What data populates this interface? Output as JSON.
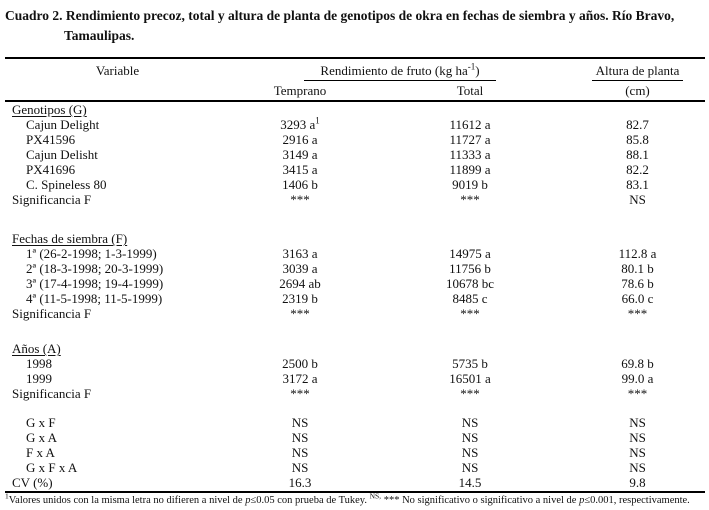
{
  "title": {
    "line1": "Cuadro 2. Rendimiento precoz, total y altura de planta de genotipos de okra en fechas de siembra y años. Río Bravo,",
    "line2": "Tamaulipas."
  },
  "header": {
    "variable": "Variable",
    "group_pre": "Rendimiento de fruto (kg ha",
    "group_sup": "-1",
    "group_post": ")",
    "temprano": "Temprano",
    "total": "Total",
    "altura_top": "Altura de planta",
    "altura_bottom": "(cm)"
  },
  "sections": [
    {
      "heading": "Genotipos (G)",
      "rows": [
        {
          "label": "Cajun Delight",
          "temprano": "3293 a",
          "temprano_sup": "1",
          "total": "11612 a",
          "altura": "82.7"
        },
        {
          "label": "PX41596",
          "temprano": "2916 a",
          "total": "11727 a",
          "altura": "85.8"
        },
        {
          "label": "Cajun Delisht",
          "temprano": "3149 a",
          "total": "11333 a",
          "altura": "88.1"
        },
        {
          "label": "PX41696",
          "temprano": "3415 a",
          "total": "11899 a",
          "altura": "82.2"
        },
        {
          "label": "C. Spineless 80",
          "temprano": "1406 b",
          "total": "9019 b",
          "altura": "83.1"
        },
        {
          "label": "Significancia F",
          "temprano": "***",
          "total": "***",
          "altura": "NS"
        }
      ]
    },
    {
      "heading": "Fechas de siembra (F)",
      "rows": [
        {
          "label": "1ª (26-2-1998; 1-3-1999)",
          "temprano": "3163 a",
          "total": "14975 a",
          "altura": "112.8 a"
        },
        {
          "label": "2ª (18-3-1998; 20-3-1999)",
          "temprano": "3039 a",
          "total": "11756 b",
          "altura": "80.1 b"
        },
        {
          "label": "3ª (17-4-1998; 19-4-1999)",
          "temprano": "2694 ab",
          "total": "10678 bc",
          "altura": "78.6 b"
        },
        {
          "label": "4ª (11-5-1998; 11-5-1999)",
          "temprano": "2319 b",
          "total": "8485 c",
          "altura": "66.0 c"
        },
        {
          "label": "Significancia F",
          "temprano": "***",
          "total": "***",
          "altura": "***"
        }
      ]
    },
    {
      "heading": "Años (A)",
      "rows": [
        {
          "label": "1998",
          "temprano": "2500 b",
          "total": "5735 b",
          "altura": "69.8 b"
        },
        {
          "label": "1999",
          "temprano": "3172 a",
          "total": "16501 a",
          "altura": "99.0 a"
        },
        {
          "label": "Significancia F",
          "temprano": "***",
          "total": "***",
          "altura": "***"
        }
      ]
    },
    {
      "heading": "",
      "rows": [
        {
          "label": "G x F",
          "temprano": "NS",
          "total": "NS",
          "altura": "NS"
        },
        {
          "label": "G x A",
          "temprano": "NS",
          "total": "NS",
          "altura": "NS"
        },
        {
          "label": "F x A",
          "temprano": "NS",
          "total": "NS",
          "altura": "NS"
        },
        {
          "label": "G x F x A",
          "temprano": "NS",
          "total": "NS",
          "altura": "NS"
        },
        {
          "label": "CV (%)",
          "temprano": "16.3",
          "total": "14.5",
          "altura": "9.8"
        }
      ]
    }
  ],
  "footnote": {
    "sup1": "1",
    "part1": "Valores unidos con la misma letra no difieren a nivel de ",
    "p1": "p",
    "part2": "≤0.05 con prueba de Tukey. ",
    "sup2": "NS,",
    "part3": " *** No significativo o significativo a nivel de ",
    "p2": "p",
    "part4": "≤0.001, respectivamente."
  }
}
